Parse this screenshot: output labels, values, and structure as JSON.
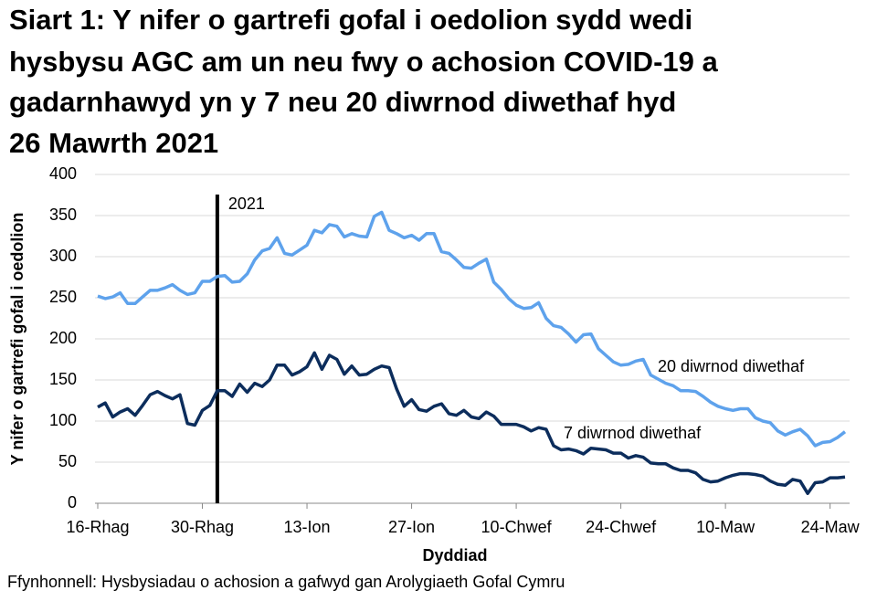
{
  "chart_data": {
    "type": "line",
    "title": [
      "Siart 1: Y nifer o gartrefi gofal i oedolion sydd wedi",
      "hysbysu AGC am un neu fwy o achosion COVID-19 a",
      "gadarnhawyd yn y 7 neu 20 diwrnod diwethaf hyd",
      "26 Mawrth 2021"
    ],
    "y_label": "Y nifer o gartrefi gofal i oedolion",
    "x_label": "Dyddiad",
    "source": "Ffynhonnell: Hysbysiadau o achosion a gafwyd gan Arolygiaeth Gofal Cymru",
    "annotations": [
      {
        "text": "2021"
      }
    ],
    "categories": [
      "16-Rhag",
      null,
      null,
      null,
      null,
      null,
      null,
      null,
      null,
      null,
      null,
      null,
      null,
      null,
      "30-Rhag",
      null,
      null,
      null,
      null,
      null,
      null,
      null,
      null,
      null,
      null,
      null,
      null,
      null,
      "13-Ion",
      null,
      null,
      null,
      null,
      null,
      null,
      null,
      null,
      null,
      null,
      null,
      null,
      null,
      "27-Ion",
      null,
      null,
      null,
      null,
      null,
      null,
      null,
      null,
      null,
      null,
      null,
      null,
      null,
      "10-Chwef",
      null,
      null,
      null,
      null,
      null,
      null,
      null,
      null,
      null,
      null,
      null,
      null,
      null,
      "24-Chwef",
      null,
      null,
      null,
      null,
      null,
      null,
      null,
      null,
      null,
      null,
      null,
      null,
      null,
      "10-Maw",
      null,
      null,
      null,
      null,
      null,
      null,
      null,
      null,
      null,
      null,
      null,
      null,
      null,
      "24-Maw",
      null,
      null
    ],
    "series": [
      {
        "name": "20 diwrnod diwethaf",
        "color": "#5ea2ec",
        "values": [
          252,
          249,
          251,
          256,
          243,
          243,
          251,
          259,
          259,
          262,
          266,
          259,
          254,
          256,
          270,
          270,
          276,
          277,
          269,
          270,
          279,
          296,
          307,
          310,
          323,
          304,
          302,
          308,
          314,
          332,
          329,
          339,
          337,
          324,
          328,
          325,
          324,
          349,
          354,
          332,
          328,
          323,
          326,
          320,
          328,
          328,
          306,
          304,
          296,
          287,
          286,
          292,
          297,
          269,
          260,
          249,
          241,
          237,
          238,
          244,
          225,
          216,
          214,
          206,
          196,
          205,
          206,
          188,
          180,
          172,
          168,
          169,
          173,
          175,
          156,
          151,
          146,
          143,
          137,
          137,
          136,
          130,
          123,
          118,
          115,
          113,
          115,
          115,
          104,
          100,
          98,
          88,
          83,
          87,
          90,
          82,
          70,
          74,
          75,
          80,
          87
        ]
      },
      {
        "name": "7 diwrnod diwethaf",
        "color": "#0c2d5c",
        "values": [
          117,
          122,
          105,
          111,
          115,
          107,
          119,
          132,
          136,
          131,
          127,
          132,
          97,
          95,
          113,
          119,
          137,
          137,
          130,
          145,
          135,
          146,
          142,
          150,
          168,
          168,
          156,
          160,
          166,
          183,
          163,
          180,
          175,
          157,
          167,
          156,
          157,
          163,
          167,
          165,
          139,
          118,
          126,
          114,
          112,
          118,
          121,
          109,
          107,
          113,
          105,
          103,
          111,
          106,
          96,
          96,
          96,
          93,
          88,
          92,
          90,
          70,
          65,
          66,
          64,
          60,
          67,
          66,
          65,
          61,
          61,
          55,
          58,
          56,
          49,
          48,
          48,
          43,
          40,
          40,
          37,
          29,
          26,
          27,
          31,
          34,
          36,
          36,
          35,
          33,
          27,
          23,
          22,
          29,
          27,
          12,
          25,
          26,
          31,
          31,
          32
        ]
      }
    ],
    "ylim": [
      0,
      400
    ],
    "yticks": [
      0,
      50,
      100,
      150,
      200,
      250,
      300,
      350,
      400
    ],
    "grid": true
  }
}
